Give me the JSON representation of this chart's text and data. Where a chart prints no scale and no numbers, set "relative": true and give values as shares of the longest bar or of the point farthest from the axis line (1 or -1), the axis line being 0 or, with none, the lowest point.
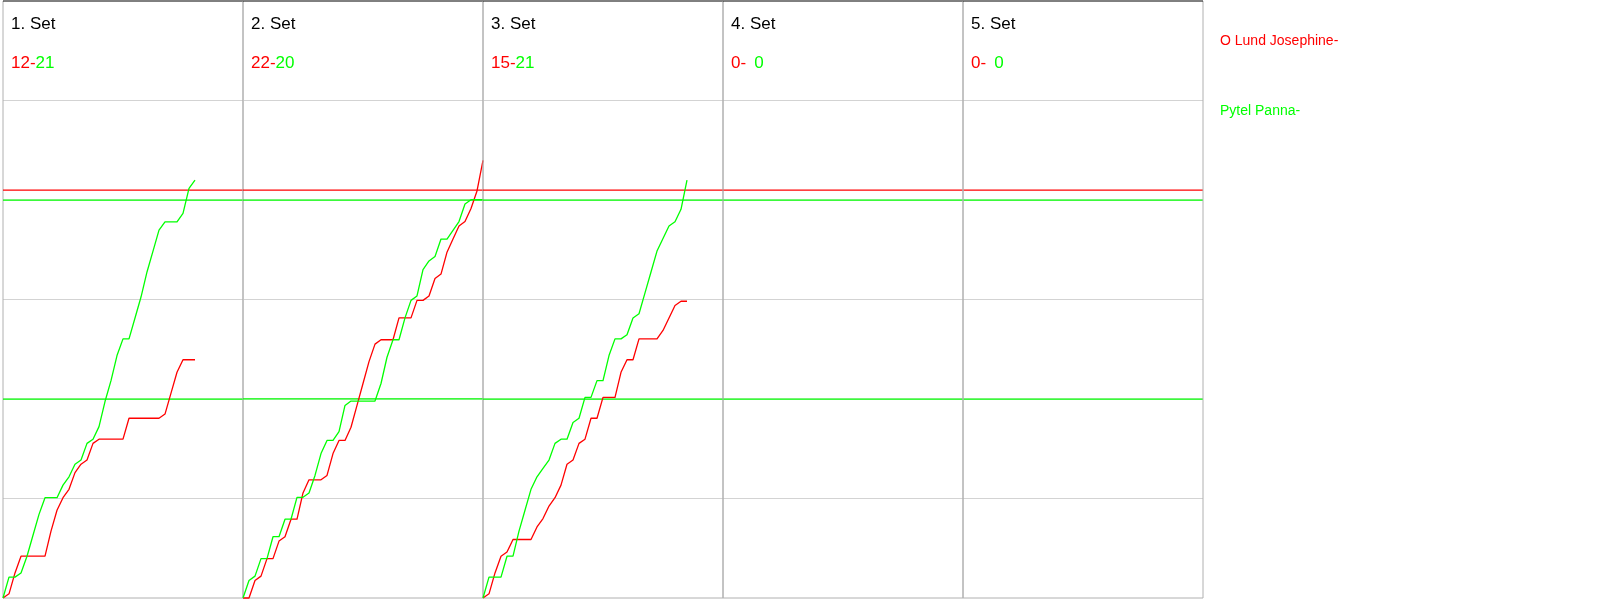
{
  "chart_data": [
    {
      "type": "line",
      "title": "1. Set",
      "annotations": [
        "12-",
        "21"
      ],
      "relative": true,
      "grid": true,
      "categories": [
        null,
        null,
        null,
        null,
        null,
        null,
        null,
        null,
        null,
        null,
        null,
        null,
        null,
        null,
        null,
        null,
        null,
        null,
        null,
        null,
        null,
        null,
        null,
        null,
        null,
        null,
        null,
        null,
        null,
        null,
        null,
        null,
        null,
        null,
        null,
        null,
        null,
        null,
        null,
        null,
        null
      ],
      "series": [
        {
          "name": "O Lund Josephine-",
          "color": "#ff0000",
          "values": [
            0,
            0.01,
            0.06,
            0.1,
            0.1,
            0.1,
            0.1,
            0.1,
            0.16,
            0.21,
            0.24,
            0.26,
            0.3,
            0.32,
            0.33,
            0.37,
            0.38,
            0.38,
            0.38,
            0.38,
            0.38,
            0.43,
            0.43,
            0.43,
            0.43,
            0.43,
            0.43,
            0.44,
            0.49,
            0.54,
            0.57,
            0.57,
            0.57,
            null,
            null,
            null,
            null,
            null,
            null,
            null,
            null
          ]
        },
        {
          "name": "Pytel Panna-",
          "color": "#00ff00",
          "values": [
            0,
            0.05,
            0.05,
            0.06,
            0.1,
            0.15,
            0.2,
            0.24,
            0.24,
            0.24,
            0.27,
            0.29,
            0.32,
            0.33,
            0.37,
            0.38,
            0.41,
            0.47,
            0.52,
            0.58,
            0.62,
            0.62,
            0.67,
            0.72,
            0.78,
            0.83,
            0.88,
            0.9,
            0.9,
            0.9,
            0.92,
            0.98,
            1,
            null,
            null,
            null,
            null,
            null,
            null,
            null,
            null
          ]
        }
      ],
      "ref_lines": [
        {
          "axis": "y",
          "value": 0.976,
          "color": "#ff0000"
        },
        {
          "axis": "y",
          "value": 0.952,
          "color": "#00ff00"
        },
        {
          "axis": "y",
          "value": 0.476,
          "color": "#00ff00"
        }
      ]
    },
    {
      "type": "line",
      "title": "2. Set",
      "annotations": [
        "22-",
        "20"
      ],
      "relative": true,
      "grid": true,
      "categories": [
        null,
        null,
        null,
        null,
        null,
        null,
        null,
        null,
        null,
        null,
        null,
        null,
        null,
        null,
        null,
        null,
        null,
        null,
        null,
        null,
        null,
        null,
        null,
        null,
        null,
        null,
        null,
        null,
        null,
        null,
        null,
        null,
        null,
        null,
        null,
        null,
        null,
        null,
        null,
        null,
        null
      ],
      "series": [
        {
          "color": "#ff0000",
          "values": [
            0,
            0,
            0.04,
            0.05,
            0.09,
            0.09,
            0.13,
            0.14,
            0.18,
            0.18,
            0.24,
            0.27,
            0.27,
            0.27,
            0.28,
            0.33,
            0.36,
            0.36,
            0.39,
            0.44,
            0.49,
            0.54,
            0.58,
            0.59,
            0.59,
            0.59,
            0.64,
            0.64,
            0.64,
            0.68,
            0.68,
            0.69,
            0.73,
            0.74,
            0.79,
            0.82,
            0.85,
            0.86,
            0.89,
            0.93,
            1
          ]
        },
        {
          "color": "#00ff00",
          "values": [
            0,
            0.04,
            0.05,
            0.09,
            0.09,
            0.14,
            0.14,
            0.18,
            0.18,
            0.23,
            0.23,
            0.24,
            0.28,
            0.33,
            0.36,
            0.36,
            0.38,
            0.44,
            0.45,
            0.45,
            0.45,
            0.45,
            0.45,
            0.49,
            0.55,
            0.59,
            0.59,
            0.64,
            0.68,
            0.69,
            0.75,
            0.77,
            0.78,
            0.82,
            0.82,
            0.84,
            0.86,
            0.9,
            0.91,
            0.91,
            0.91
          ]
        }
      ],
      "ref_lines": [
        {
          "axis": "y",
          "value": 0.932,
          "color": "#ff0000"
        },
        {
          "axis": "y",
          "value": 0.909,
          "color": "#00ff00"
        },
        {
          "axis": "y",
          "value": 0.455,
          "color": "#00ff00"
        }
      ]
    },
    {
      "type": "line",
      "title": "3. Set",
      "annotations": [
        "15-",
        "21"
      ],
      "relative": true,
      "grid": true,
      "categories": [
        null,
        null,
        null,
        null,
        null,
        null,
        null,
        null,
        null,
        null,
        null,
        null,
        null,
        null,
        null,
        null,
        null,
        null,
        null,
        null,
        null,
        null,
        null,
        null,
        null,
        null,
        null,
        null,
        null,
        null,
        null,
        null,
        null,
        null,
        null,
        null,
        null,
        null,
        null,
        null,
        null
      ],
      "series": [
        {
          "color": "#ff0000",
          "values": [
            0,
            0.01,
            0.06,
            0.1,
            0.11,
            0.14,
            0.14,
            0.14,
            0.14,
            0.17,
            0.19,
            0.22,
            0.24,
            0.27,
            0.32,
            0.33,
            0.37,
            0.38,
            0.43,
            0.43,
            0.48,
            0.48,
            0.48,
            0.54,
            0.57,
            0.57,
            0.62,
            0.62,
            0.62,
            0.62,
            0.64,
            0.67,
            0.7,
            0.71,
            0.71,
            null,
            null,
            null,
            null,
            null,
            null
          ]
        },
        {
          "color": "#00ff00",
          "values": [
            0,
            0.05,
            0.05,
            0.05,
            0.1,
            0.1,
            0.16,
            0.21,
            0.26,
            0.29,
            0.31,
            0.33,
            0.37,
            0.38,
            0.38,
            0.42,
            0.43,
            0.48,
            0.48,
            0.52,
            0.52,
            0.58,
            0.62,
            0.62,
            0.63,
            0.67,
            0.68,
            0.73,
            0.78,
            0.83,
            0.86,
            0.89,
            0.9,
            0.93,
            1,
            null,
            null,
            null,
            null,
            null,
            null
          ]
        }
      ],
      "ref_lines": [
        {
          "axis": "y",
          "value": 0.976,
          "color": "#ff0000"
        },
        {
          "axis": "y",
          "value": 0.952,
          "color": "#00ff00"
        },
        {
          "axis": "y",
          "value": 0.476,
          "color": "#00ff00"
        }
      ]
    },
    {
      "type": "other",
      "title": "4. Set",
      "annotations": [
        "0-",
        "0"
      ]
    },
    {
      "type": "other",
      "title": "5. Set",
      "annotations": [
        "0-",
        "0"
      ]
    }
  ]
}
